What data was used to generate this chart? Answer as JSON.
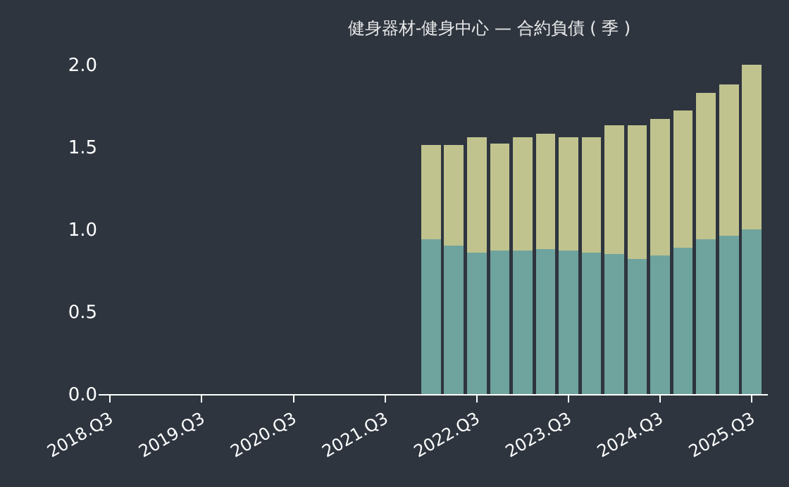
{
  "chart_data": {
    "type": "bar",
    "title": "健身器材-健身中心 — 合約負債 ( 季 )",
    "stacked": true,
    "categories": [
      "2018.Q3",
      null,
      null,
      null,
      "2019.Q3",
      null,
      null,
      null,
      "2020.Q3",
      null,
      null,
      null,
      "2021.Q3",
      null,
      null,
      null,
      "2022.Q3",
      null,
      null,
      null,
      "2023.Q3",
      null,
      null,
      null,
      "2024.Q3",
      null,
      null,
      null,
      "2025.Q3"
    ],
    "series": [
      {
        "color": "#6fa39e",
        "values": [
          null,
          null,
          null,
          null,
          null,
          null,
          null,
          null,
          null,
          null,
          null,
          null,
          null,
          null,
          0.94,
          0.9,
          0.86,
          0.87,
          0.87,
          0.88,
          0.87,
          0.86,
          0.85,
          0.82,
          0.84,
          0.89,
          0.94,
          0.96,
          1.0
        ]
      },
      {
        "color": "#c0c38e",
        "values": [
          null,
          null,
          null,
          null,
          null,
          null,
          null,
          null,
          null,
          null,
          null,
          null,
          null,
          null,
          0.57,
          0.61,
          0.7,
          0.65,
          0.69,
          0.7,
          0.69,
          0.7,
          0.78,
          0.81,
          0.83,
          0.83,
          0.89,
          0.92,
          1.0
        ]
      }
    ],
    "ylim": [
      0,
      2.05
    ],
    "yticks": [
      {
        "value": 0,
        "label": "0.0"
      },
      {
        "value": 0.5,
        "label": "0.5"
      },
      {
        "value": 1,
        "label": "1.0"
      },
      {
        "value": 1.5,
        "label": "1.5"
      },
      {
        "value": 2,
        "label": "2.0"
      }
    ]
  }
}
